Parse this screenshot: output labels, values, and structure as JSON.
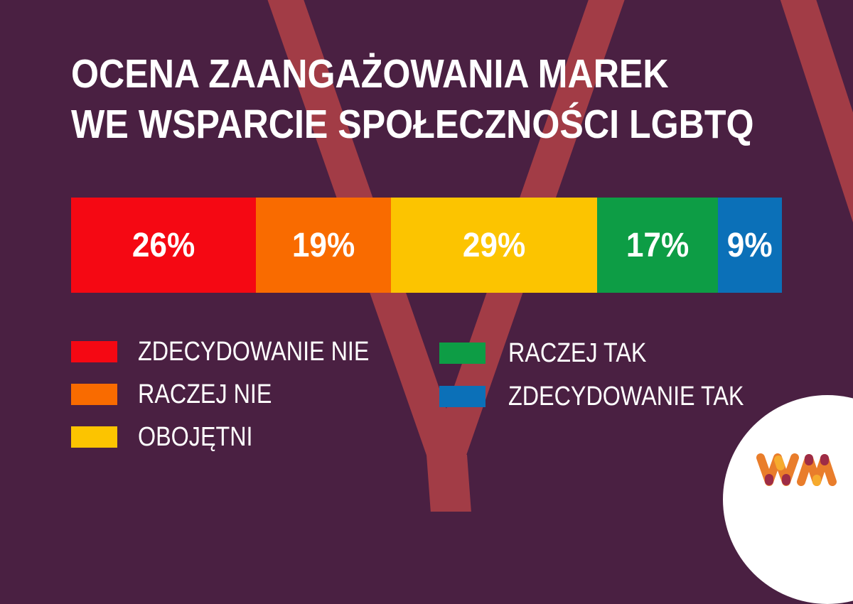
{
  "theme": {
    "background": "#4A2042",
    "text_color": "#FFFFFF",
    "watermark_color": "#A23C46",
    "circle_color": "#FFFFFF"
  },
  "title": {
    "line1": "OCENA ZAANGAŻOWANIA MAREK",
    "line2": "WE WSPARCIE SPOŁECZNOŚCI LGBTQ"
  },
  "chart_data": {
    "type": "bar",
    "variant": "horizontal_stacked_100pct",
    "title": "OCENA ZAANGAŻOWANIA MAREK WE WSPARCIE SPOŁECZNOŚCI LGBTQ",
    "unit": "%",
    "categories": [
      "ZDECYDOWANIE NIE",
      "RACZEJ NIE",
      "OBOJĘTNI",
      "RACZEJ TAK",
      "ZDECYDOWANIE TAK"
    ],
    "values": [
      26,
      19,
      29,
      17,
      9
    ],
    "segments": [
      {
        "label": "ZDECYDOWANIE NIE",
        "value": 26,
        "display": "26%",
        "color": "#F50813"
      },
      {
        "label": "RACZEJ NIE",
        "value": 19,
        "display": "19%",
        "color": "#F96B00"
      },
      {
        "label": "OBOJĘTNI",
        "value": 29,
        "display": "29%",
        "color": "#FCC400"
      },
      {
        "label": "RACZEJ TAK",
        "value": 17,
        "display": "17%",
        "color": "#0D9D45"
      },
      {
        "label": "ZDECYDOWANIE TAK",
        "value": 9,
        "display": "9%",
        "color": "#0B70B8"
      }
    ],
    "legend_position": "bottom",
    "grid": false
  },
  "legend": {
    "columns": [
      {
        "items": [
          {
            "label": "ZDECYDOWANIE NIE",
            "color": "#F50813"
          },
          {
            "label": "RACZEJ NIE",
            "color": "#F96B00"
          },
          {
            "label": "OBOJĘTNI",
            "color": "#FCC400"
          }
        ]
      },
      {
        "items": [
          {
            "label": "RACZEJ TAK",
            "color": "#0D9D45"
          },
          {
            "label": "ZDECYDOWANIE TAK",
            "color": "#0B70B8"
          }
        ]
      }
    ]
  },
  "watermark": {
    "glyph": "W",
    "color": "#A23C46"
  },
  "logo": {
    "text": "WM",
    "orange": "#E97D2B",
    "amber": "#F6AB2E",
    "maroon": "#9E2C46"
  }
}
